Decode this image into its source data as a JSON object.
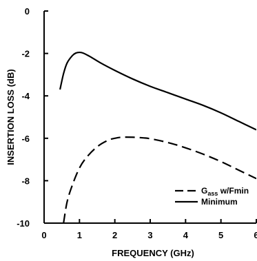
{
  "chart_data": {
    "type": "line",
    "title": "",
    "xlabel": "FREQUENCY (GHz)",
    "ylabel": "INSERTION LOSS (dB)",
    "xlim": [
      0,
      6
    ],
    "ylim": [
      -10,
      0
    ],
    "x_ticks": [
      0,
      1,
      2,
      3,
      4,
      5,
      6
    ],
    "x_tick_labels": [
      "0",
      "1",
      "2",
      "3",
      "4",
      "5",
      "6"
    ],
    "y_ticks": [
      0,
      -2,
      -4,
      -6,
      -8,
      -10
    ],
    "y_tick_labels": [
      "0",
      "-2",
      "-4",
      "-6",
      "-8",
      "-10"
    ],
    "grid": false,
    "legend_position": "bottom-right",
    "series": [
      {
        "name": "Gass w/Fmin",
        "legend_main": "G",
        "legend_sub": "ass",
        "legend_rest": " w/Fmin",
        "style": "dashed",
        "color": "#000000",
        "x": [
          0.55,
          0.65,
          0.8,
          1.0,
          1.2,
          1.5,
          1.8,
          2.0,
          2.2,
          2.5,
          2.8,
          3.0,
          3.5,
          4.0,
          4.5,
          5.0,
          5.5,
          6.0
        ],
        "y": [
          -10.0,
          -9.0,
          -8.2,
          -7.4,
          -6.9,
          -6.4,
          -6.1,
          -6.0,
          -5.95,
          -5.95,
          -5.98,
          -6.02,
          -6.2,
          -6.45,
          -6.75,
          -7.1,
          -7.5,
          -7.9
        ]
      },
      {
        "name": "Minimum",
        "legend_main": "Minimum",
        "legend_sub": "",
        "legend_rest": "",
        "style": "solid",
        "color": "#000000",
        "x": [
          0.45,
          0.55,
          0.65,
          0.8,
          0.9,
          1.0,
          1.1,
          1.3,
          1.6,
          2.0,
          2.5,
          3.0,
          3.5,
          4.0,
          4.5,
          5.0,
          5.5,
          6.0
        ],
        "y": [
          -3.7,
          -2.95,
          -2.45,
          -2.1,
          -1.98,
          -1.95,
          -1.98,
          -2.15,
          -2.45,
          -2.8,
          -3.2,
          -3.55,
          -3.85,
          -4.15,
          -4.45,
          -4.8,
          -5.2,
          -5.6
        ]
      }
    ]
  }
}
